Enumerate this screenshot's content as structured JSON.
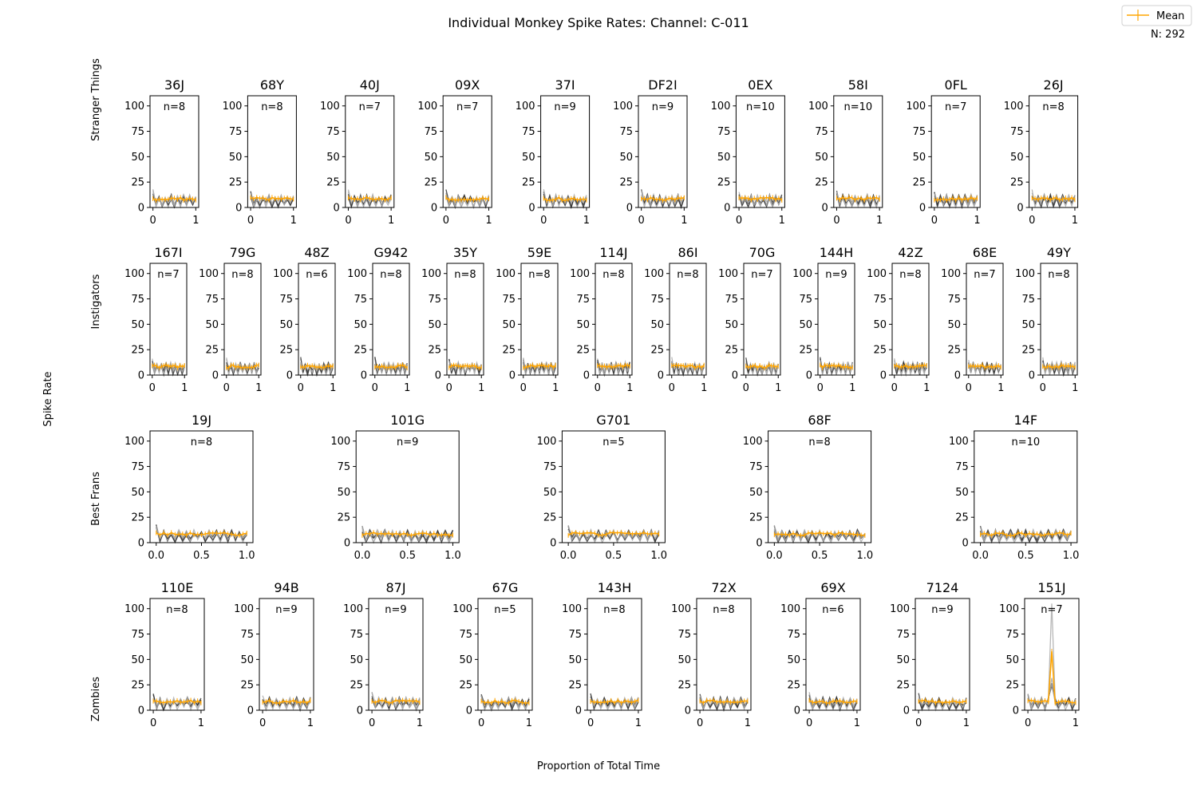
{
  "title": "Individual Monkey Spike Rates: Channel: C-011",
  "xlabel": "Proportion of Total Time",
  "ylabel": "Spike Rate",
  "legend": {
    "label": "Mean",
    "color": "#ffa500",
    "n_label": "N: 292",
    "placement": "top-right"
  },
  "colors": {
    "mean": "#ffa500",
    "trial_dark": "#333333",
    "trial_light": "#aaaaaa"
  },
  "chart_data": {
    "type": "line",
    "ylim": [
      0,
      110
    ],
    "yticks": [
      0,
      25,
      50,
      75,
      100
    ],
    "groups": [
      {
        "name": "Stranger Things",
        "xticks": [
          "0",
          "1"
        ],
        "monkeys": [
          {
            "id": "36J",
            "n": "n=8"
          },
          {
            "id": "68Y",
            "n": "n=8"
          },
          {
            "id": "40J",
            "n": "n=7"
          },
          {
            "id": "09X",
            "n": "n=7"
          },
          {
            "id": "37I",
            "n": "n=9"
          },
          {
            "id": "DF2I",
            "n": "n=9"
          },
          {
            "id": "0EX",
            "n": "n=10"
          },
          {
            "id": "58I",
            "n": "n=10"
          },
          {
            "id": "0FL",
            "n": "n=7"
          },
          {
            "id": "26J",
            "n": "n=8"
          }
        ]
      },
      {
        "name": "Instigators",
        "xticks": [
          "0",
          "1"
        ],
        "monkeys": [
          {
            "id": "167I",
            "n": "n=7"
          },
          {
            "id": "79G",
            "n": "n=8"
          },
          {
            "id": "48Z",
            "n": "n=6"
          },
          {
            "id": "G942",
            "n": "n=8"
          },
          {
            "id": "35Y",
            "n": "n=8"
          },
          {
            "id": "59E",
            "n": "n=8"
          },
          {
            "id": "114J",
            "n": "n=8"
          },
          {
            "id": "86I",
            "n": "n=8"
          },
          {
            "id": "70G",
            "n": "n=7"
          },
          {
            "id": "144H",
            "n": "n=9"
          },
          {
            "id": "42Z",
            "n": "n=8"
          },
          {
            "id": "68E",
            "n": "n=7"
          },
          {
            "id": "49Y",
            "n": "n=8"
          }
        ]
      },
      {
        "name": "Best Frans",
        "xticks": [
          "0.0",
          "0.5",
          "1.0"
        ],
        "monkeys": [
          {
            "id": "19J",
            "n": "n=8"
          },
          {
            "id": "101G",
            "n": "n=9"
          },
          {
            "id": "G701",
            "n": "n=5"
          },
          {
            "id": "68F",
            "n": "n=8"
          },
          {
            "id": "14F",
            "n": "n=10"
          }
        ]
      },
      {
        "name": "Zombies",
        "xticks": [
          "0",
          "1"
        ],
        "monkeys": [
          {
            "id": "110E",
            "n": "n=8"
          },
          {
            "id": "94B",
            "n": "n=9"
          },
          {
            "id": "87J",
            "n": "n=9"
          },
          {
            "id": "67G",
            "n": "n=5"
          },
          {
            "id": "143H",
            "n": "n=8"
          },
          {
            "id": "72X",
            "n": "n=8"
          },
          {
            "id": "69X",
            "n": "n=6"
          },
          {
            "id": "7124",
            "n": "n=9"
          },
          {
            "id": "151J",
            "n": "n=7",
            "peak": {
              "x": 0.5,
              "trial": 105,
              "mean": 58
            }
          }
        ]
      }
    ]
  }
}
